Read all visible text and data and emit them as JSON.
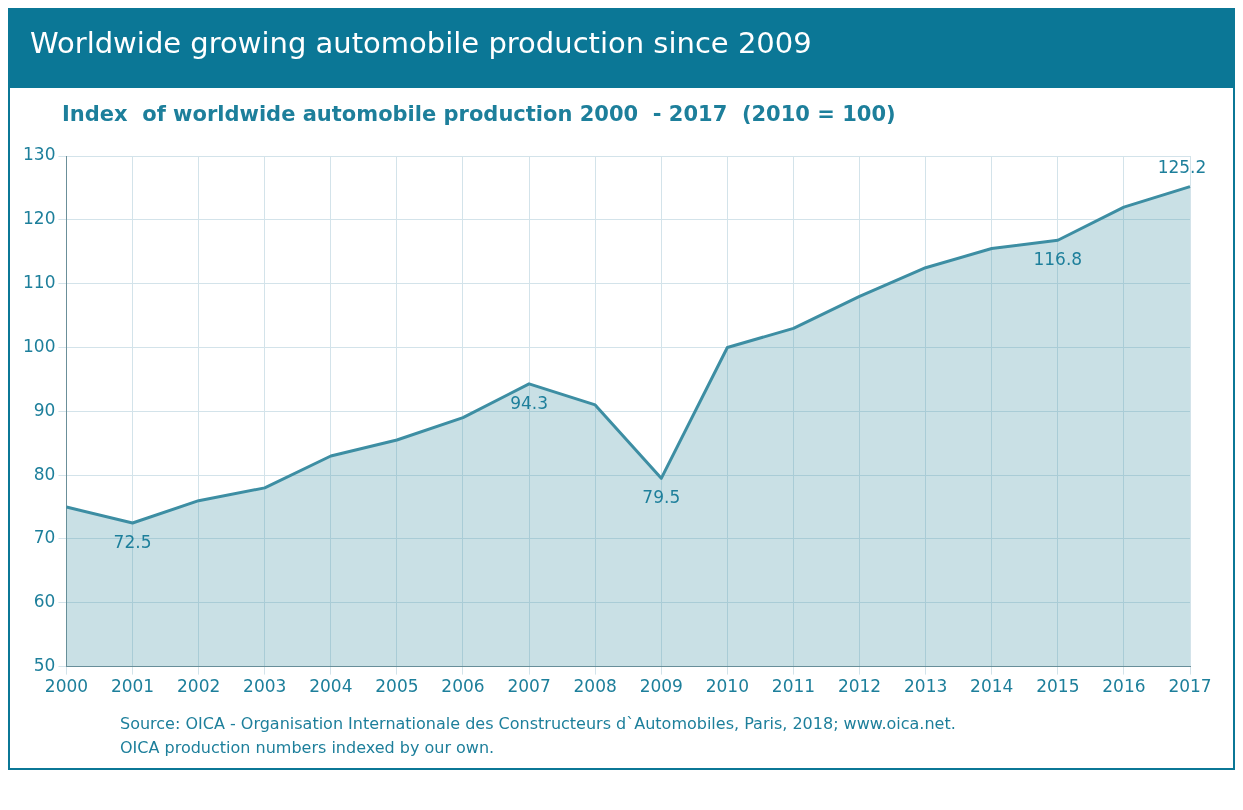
{
  "chart_data": {
    "type": "area",
    "title": "Worldwide growing automobile production since 2009",
    "subtitle": "Index  of worldwide automobile production 2000  - 2017  (2010 = 100)",
    "categories": [
      "2000",
      "2001",
      "2002",
      "2003",
      "2004",
      "2005",
      "2006",
      "2007",
      "2008",
      "2009",
      "2010",
      "2011",
      "2012",
      "2013",
      "2014",
      "2015",
      "2016",
      "2017"
    ],
    "values": [
      75,
      72.5,
      76,
      78,
      83,
      85.5,
      89,
      94.3,
      91,
      79.5,
      100,
      103,
      108,
      112.5,
      115.5,
      116.8,
      122,
      125.2
    ],
    "value_labels": [
      null,
      "72.5",
      null,
      null,
      null,
      null,
      null,
      "94.3",
      null,
      "79.5",
      null,
      null,
      null,
      null,
      null,
      "116.8",
      null,
      "125.2"
    ],
    "color": "#3d8ea3",
    "ylim": [
      50,
      130
    ],
    "yticks": [
      50,
      60,
      70,
      80,
      90,
      100,
      110,
      120,
      130
    ],
    "grid": true,
    "marker": "none",
    "line_style": "solid",
    "annotations": [
      "Source: OICA - Organisation Internationale des Constructeurs d`Automobiles, Paris, 2018; www.oica.net.",
      "OICA production numbers indexed by our own."
    ]
  }
}
